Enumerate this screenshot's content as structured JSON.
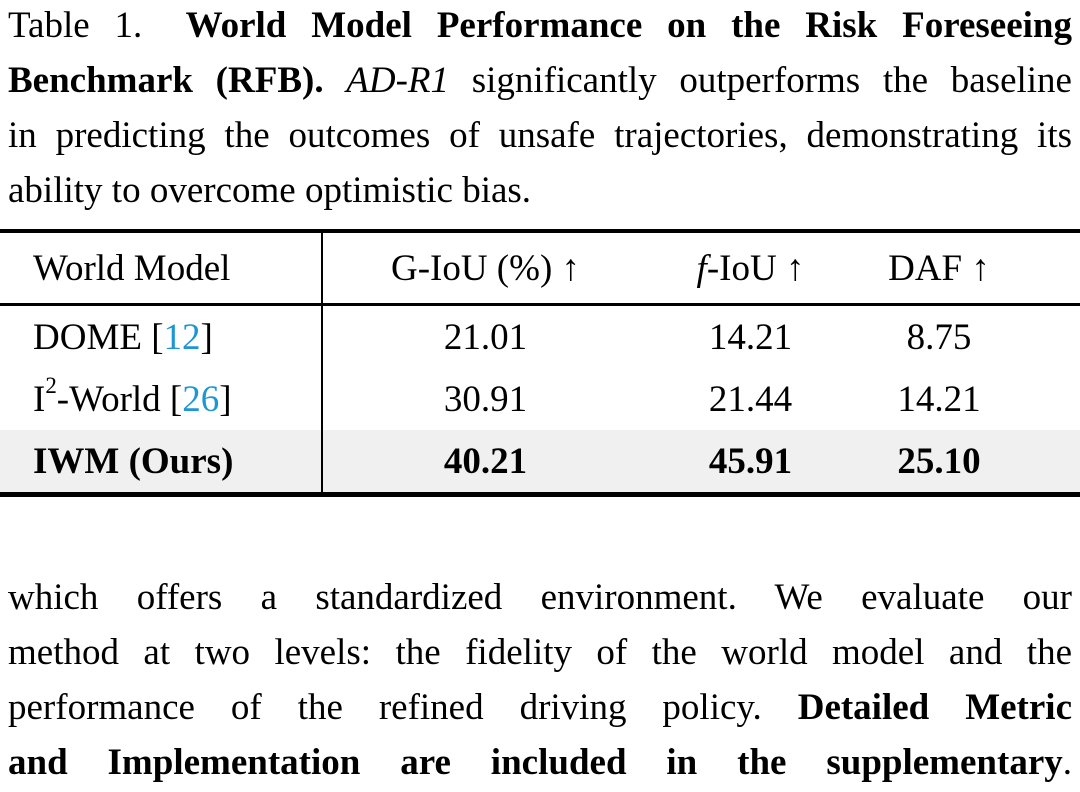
{
  "colors": {
    "citation_blue": "#1e96d2",
    "highlight_row_bg": "#f0f0f0",
    "text_black": "#000000"
  },
  "caption": {
    "label": "Table 1.",
    "lines": [
      {
        "justify": true,
        "segments": [
          {
            "text": "Table 1.",
            "style": "regular"
          },
          {
            "text": "  ",
            "style": "regular"
          },
          {
            "text": "World Model Performance on the Risk Foreseeing",
            "style": "bold"
          }
        ]
      },
      {
        "justify": true,
        "segments": [
          {
            "text": "Benchmark (RFB).",
            "style": "bold"
          },
          {
            "text": " ",
            "style": "regular"
          },
          {
            "text": "AD-R1",
            "style": "italic"
          },
          {
            "text": " significantly outperforms the baseline",
            "style": "regular"
          }
        ]
      },
      {
        "justify": true,
        "segments": [
          {
            "text": "in predicting the outcomes of unsafe trajectories, demonstrating its",
            "style": "regular"
          }
        ]
      },
      {
        "justify": false,
        "segments": [
          {
            "text": "ability to overcome optimistic bias.",
            "style": "regular"
          }
        ]
      }
    ]
  },
  "table": {
    "headers": [
      {
        "name": "world-model",
        "align": "left",
        "segments": [
          {
            "text": "World Model",
            "style": "regular"
          }
        ]
      },
      {
        "name": "g-iou",
        "align": "center",
        "segments": [
          {
            "text": "G-IoU (%) ↑",
            "style": "regular"
          }
        ]
      },
      {
        "name": "f-iou",
        "align": "center",
        "segments": [
          {
            "text": "f",
            "style": "italic"
          },
          {
            "text": "-IoU ↑",
            "style": "regular"
          }
        ]
      },
      {
        "name": "daf",
        "align": "center",
        "segments": [
          {
            "text": "DAF ↑",
            "style": "regular"
          }
        ]
      }
    ],
    "rows": [
      {
        "highlight": false,
        "bold": false,
        "model": [
          {
            "text": "DOME [",
            "style": "regular"
          },
          {
            "text": "12",
            "style": "cite",
            "name": "citation-link-12"
          },
          {
            "text": "]",
            "style": "regular"
          }
        ],
        "values": [
          "21.01",
          "14.21",
          "8.75"
        ]
      },
      {
        "highlight": false,
        "bold": false,
        "model": [
          {
            "text": "I",
            "style": "regular"
          },
          {
            "text": "2",
            "style": "sup"
          },
          {
            "text": "-World [",
            "style": "regular"
          },
          {
            "text": "26",
            "style": "cite",
            "name": "citation-link-26"
          },
          {
            "text": "]",
            "style": "regular"
          }
        ],
        "values": [
          "30.91",
          "21.44",
          "14.21"
        ]
      },
      {
        "highlight": true,
        "bold": true,
        "model": [
          {
            "text": "IWM (Ours)",
            "style": "bold"
          }
        ],
        "values": [
          "40.21",
          "45.91",
          "25.10"
        ]
      }
    ]
  },
  "paragraph": {
    "lines": [
      {
        "justify": true,
        "segments": [
          {
            "text": "which offers a standardized environment.  We evaluate our",
            "style": "regular"
          }
        ]
      },
      {
        "justify": true,
        "segments": [
          {
            "text": "method at two levels: the fidelity of the world model and the",
            "style": "regular"
          }
        ]
      },
      {
        "justify": true,
        "segments": [
          {
            "text": "performance of the refined driving policy. ",
            "style": "regular"
          },
          {
            "text": "Detailed Metric",
            "style": "bold"
          }
        ]
      },
      {
        "justify": true,
        "segments": [
          {
            "text": "and Implementation are included in the supplementary",
            "style": "bold"
          },
          {
            "text": ".",
            "style": "regular"
          }
        ]
      }
    ]
  }
}
